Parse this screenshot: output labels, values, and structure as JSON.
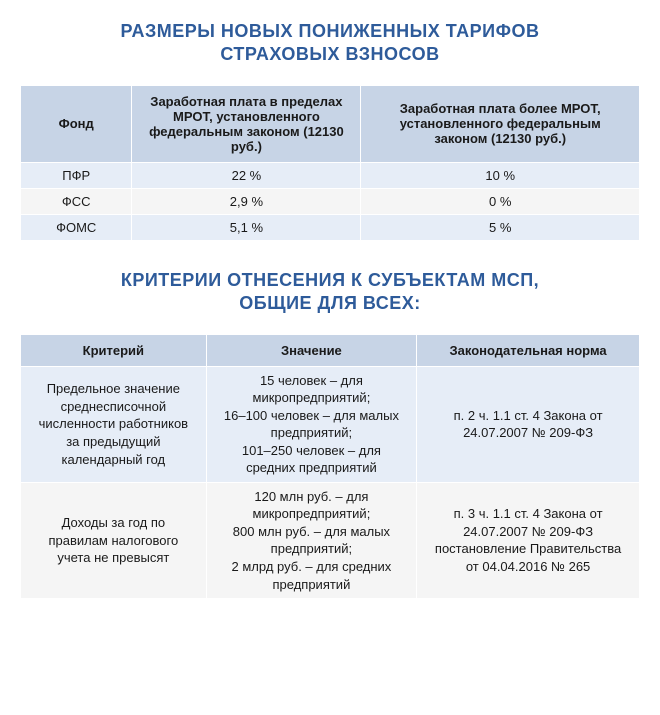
{
  "colors": {
    "title_color": "#2e5b9a",
    "header_bg": "#c7d4e6",
    "row_even_bg": "#e6edf7",
    "row_odd_bg": "#f5f5f5",
    "text_color": "#1a1a1a",
    "border_color": "#ffffff"
  },
  "typography": {
    "title_fontsize": 18,
    "header_fontsize": 13,
    "cell_fontsize": 13,
    "font_family": "Arial"
  },
  "section1": {
    "title_line1": "РАЗМЕРЫ НОВЫХ ПОНИЖЕННЫХ ТАРИФОВ",
    "title_line2": "СТРАХОВЫХ ВЗНОСОВ",
    "table": {
      "type": "table",
      "columns": [
        "Фонд",
        "Заработная плата в пределах МРОТ, установленного федеральным законом (12130 руб.)",
        "Заработная плата более МРОТ, установленного федеральным законом (12130 руб.)"
      ],
      "rows": [
        [
          "ПФР",
          "22 %",
          "10 %"
        ],
        [
          "ФСС",
          "2,9 %",
          "0 %"
        ],
        [
          "ФОМС",
          "5,1 %",
          "5 %"
        ]
      ]
    }
  },
  "section2": {
    "title_line1": "КРИТЕРИИ ОТНЕСЕНИЯ К СУБЪЕКТАМ МСП,",
    "title_line2": "ОБЩИЕ ДЛЯ ВСЕХ:",
    "table": {
      "type": "table",
      "columns": [
        "Критерий",
        "Значение",
        "Законодательная норма"
      ],
      "rows": [
        [
          "Предельное значение среднесписочной численности работников за предыдущий календарный год",
          "15 человек – для микропредприятий;\n16–100 человек – для малых предприятий;\n101–250 человек – для средних предприятий",
          "п. 2 ч. 1.1 ст. 4 Закона от 24.07.2007 № 209-ФЗ"
        ],
        [
          "Доходы за год по правилам налогового учета не превысят",
          "120 млн руб. – для микропредприятий;\n800 млн руб. – для малых предприятий;\n2 млрд руб. – для средних предприятий",
          "п. 3 ч. 1.1 ст. 4 Закона от 24.07.2007 № 209-ФЗ постановление Правительства от 04.04.2016 № 265"
        ]
      ]
    }
  }
}
